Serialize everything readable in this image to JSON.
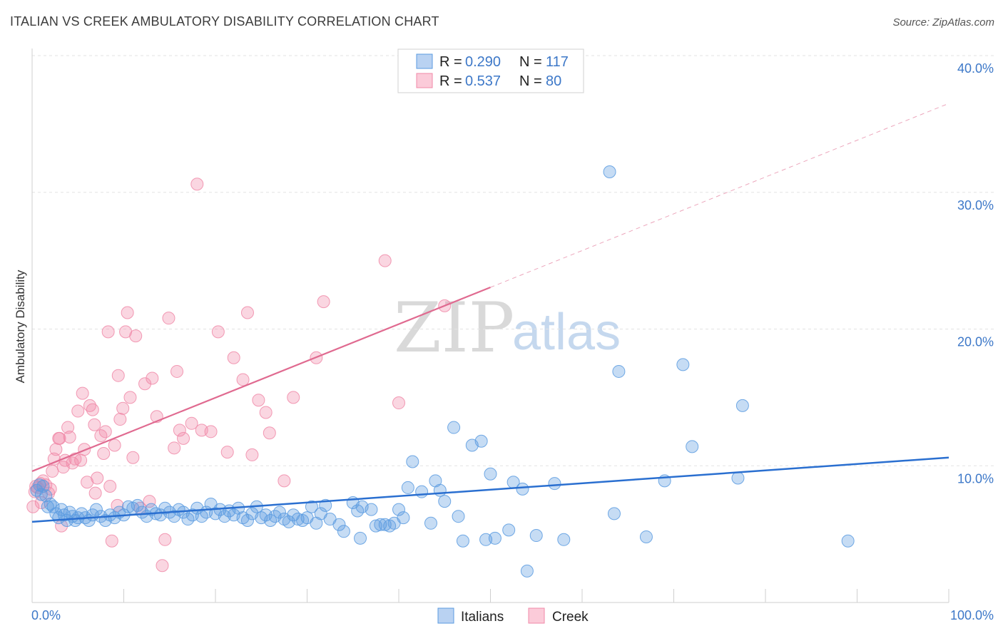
{
  "title": "ITALIAN VS CREEK AMBULATORY DISABILITY CORRELATION CHART",
  "source": "Source: ZipAtlas.com",
  "watermark": {
    "zip": "ZIP",
    "atlas": "atlas"
  },
  "colors": {
    "italians": "#5b9be0",
    "creek": "#f08aa8",
    "italians_line": "#2a6fd0",
    "creek_line": "#e06a90",
    "tick": "#3d78c8"
  },
  "legend": {
    "rows": [
      {
        "r_label": "R =",
        "r_value": "0.290",
        "n_label": "N =",
        "n_value": "117"
      },
      {
        "r_label": "R =",
        "r_value": "0.537",
        "n_label": "N =",
        "n_value": "80"
      }
    ]
  },
  "bottom_legend": [
    "Italians",
    "Creek"
  ],
  "chart_data": {
    "type": "scatter",
    "title": "ITALIAN VS CREEK AMBULATORY DISABILITY CORRELATION CHART",
    "xlabel": "",
    "ylabel": "Ambulatory Disability",
    "xlim": [
      0,
      100
    ],
    "ylim": [
      0,
      40
    ],
    "x_tick_labels": [
      "0.0%",
      "100.0%"
    ],
    "y_tick_labels": [
      "10.0%",
      "20.0%",
      "30.0%",
      "40.0%"
    ],
    "y_ticks": [
      10,
      20,
      30,
      40
    ],
    "grid": "horizontal dashed",
    "legend_position": "top-center",
    "series": [
      {
        "name": "Italians",
        "r": 0.29,
        "n": 117,
        "trend": {
          "x": [
            0,
            100
          ],
          "y": [
            5.9,
            10.6
          ]
        },
        "points": [
          [
            0.5,
            8.2
          ],
          [
            0.8,
            8.6
          ],
          [
            1.0,
            7.9
          ],
          [
            1.2,
            8.5
          ],
          [
            1.5,
            7.8
          ],
          [
            1.7,
            7.0
          ],
          [
            2.0,
            7.2
          ],
          [
            2.3,
            7.0
          ],
          [
            2.6,
            6.5
          ],
          [
            2.9,
            6.2
          ],
          [
            3.2,
            6.8
          ],
          [
            3.5,
            6.4
          ],
          [
            3.8,
            6.0
          ],
          [
            4.1,
            6.6
          ],
          [
            4.4,
            6.3
          ],
          [
            4.7,
            6.0
          ],
          [
            5.0,
            6.2
          ],
          [
            5.4,
            6.5
          ],
          [
            5.8,
            6.2
          ],
          [
            6.2,
            6.0
          ],
          [
            6.6,
            6.4
          ],
          [
            7.0,
            6.8
          ],
          [
            7.5,
            6.3
          ],
          [
            8.0,
            6.0
          ],
          [
            8.5,
            6.4
          ],
          [
            9.0,
            6.2
          ],
          [
            9.5,
            6.6
          ],
          [
            10.0,
            6.4
          ],
          [
            10.5,
            7.0
          ],
          [
            11.0,
            6.9
          ],
          [
            11.5,
            7.1
          ],
          [
            12.0,
            6.6
          ],
          [
            12.5,
            6.3
          ],
          [
            13.0,
            6.8
          ],
          [
            13.5,
            6.5
          ],
          [
            14.0,
            6.4
          ],
          [
            14.5,
            6.9
          ],
          [
            15.0,
            6.6
          ],
          [
            15.5,
            6.3
          ],
          [
            16.0,
            6.8
          ],
          [
            16.5,
            6.6
          ],
          [
            17.0,
            6.1
          ],
          [
            17.5,
            6.4
          ],
          [
            18.0,
            6.9
          ],
          [
            18.5,
            6.3
          ],
          [
            19.0,
            6.6
          ],
          [
            19.5,
            7.2
          ],
          [
            20.0,
            6.5
          ],
          [
            20.5,
            6.8
          ],
          [
            21.0,
            6.3
          ],
          [
            21.5,
            6.7
          ],
          [
            22.0,
            6.4
          ],
          [
            22.5,
            6.9
          ],
          [
            23.0,
            6.2
          ],
          [
            23.5,
            6.0
          ],
          [
            24.0,
            6.5
          ],
          [
            24.5,
            7.0
          ],
          [
            25.0,
            6.2
          ],
          [
            25.5,
            6.4
          ],
          [
            26.0,
            6.0
          ],
          [
            26.5,
            6.3
          ],
          [
            27.0,
            6.6
          ],
          [
            27.5,
            6.1
          ],
          [
            28.0,
            5.9
          ],
          [
            28.5,
            6.4
          ],
          [
            29.0,
            6.1
          ],
          [
            29.5,
            6.0
          ],
          [
            30.0,
            6.2
          ],
          [
            30.5,
            7.0
          ],
          [
            31.0,
            5.8
          ],
          [
            31.5,
            6.5
          ],
          [
            32.0,
            7.1
          ],
          [
            32.5,
            6.1
          ],
          [
            33.5,
            5.7
          ],
          [
            34.0,
            5.2
          ],
          [
            35.0,
            7.3
          ],
          [
            35.5,
            6.7
          ],
          [
            36.0,
            7.0
          ],
          [
            37.0,
            6.8
          ],
          [
            37.5,
            5.6
          ],
          [
            38.0,
            5.7
          ],
          [
            38.5,
            5.7
          ],
          [
            39.0,
            5.6
          ],
          [
            39.5,
            5.8
          ],
          [
            40.0,
            6.8
          ],
          [
            40.5,
            6.2
          ],
          [
            41.0,
            8.4
          ],
          [
            41.5,
            10.3
          ],
          [
            42.5,
            8.1
          ],
          [
            43.5,
            5.8
          ],
          [
            44.0,
            8.9
          ],
          [
            44.5,
            8.2
          ],
          [
            45.0,
            7.4
          ],
          [
            46.0,
            12.8
          ],
          [
            46.5,
            6.3
          ],
          [
            47.0,
            4.5
          ],
          [
            48.0,
            11.5
          ],
          [
            49.0,
            11.8
          ],
          [
            49.5,
            4.6
          ],
          [
            50.0,
            9.4
          ],
          [
            50.5,
            4.7
          ],
          [
            52.0,
            5.3
          ],
          [
            52.5,
            8.8
          ],
          [
            53.5,
            8.3
          ],
          [
            54.0,
            2.3
          ],
          [
            55.0,
            4.9
          ],
          [
            57.0,
            8.7
          ],
          [
            58.0,
            4.6
          ],
          [
            63.0,
            31.5
          ],
          [
            63.5,
            6.5
          ],
          [
            64.0,
            16.9
          ],
          [
            67.0,
            4.8
          ],
          [
            69.0,
            8.9
          ],
          [
            71.0,
            17.4
          ],
          [
            72.0,
            11.4
          ],
          [
            77.0,
            9.1
          ],
          [
            77.5,
            14.4
          ],
          [
            89.0,
            4.5
          ],
          [
            35.8,
            4.7
          ]
        ]
      },
      {
        "name": "Creek",
        "r": 0.537,
        "n": 80,
        "trend": {
          "x": [
            0,
            100
          ],
          "y": [
            9.6,
            36.5
          ]
        },
        "trend_solid_until": 50,
        "points": [
          [
            0.1,
            7.0
          ],
          [
            0.4,
            8.5
          ],
          [
            0.6,
            8.4
          ],
          [
            0.9,
            8.7
          ],
          [
            1.2,
            8.9
          ],
          [
            1.5,
            8.6
          ],
          [
            1.8,
            8.0
          ],
          [
            2.0,
            8.3
          ],
          [
            2.4,
            10.5
          ],
          [
            2.6,
            11.2
          ],
          [
            2.9,
            12.0
          ],
          [
            3.2,
            5.6
          ],
          [
            3.4,
            9.9
          ],
          [
            3.6,
            10.4
          ],
          [
            3.9,
            12.8
          ],
          [
            4.1,
            12.1
          ],
          [
            4.4,
            10.2
          ],
          [
            4.7,
            10.5
          ],
          [
            5.0,
            14.0
          ],
          [
            5.3,
            10.4
          ],
          [
            5.5,
            15.3
          ],
          [
            5.7,
            11.2
          ],
          [
            6.0,
            8.8
          ],
          [
            6.3,
            14.4
          ],
          [
            6.6,
            14.1
          ],
          [
            6.9,
            8.0
          ],
          [
            7.1,
            9.1
          ],
          [
            7.5,
            12.2
          ],
          [
            7.8,
            10.9
          ],
          [
            8.0,
            12.5
          ],
          [
            8.3,
            19.8
          ],
          [
            8.5,
            8.5
          ],
          [
            8.7,
            4.5
          ],
          [
            9.0,
            11.5
          ],
          [
            9.3,
            7.1
          ],
          [
            9.6,
            13.4
          ],
          [
            9.9,
            14.2
          ],
          [
            10.2,
            19.8
          ],
          [
            10.4,
            21.2
          ],
          [
            10.7,
            15.0
          ],
          [
            11.0,
            10.6
          ],
          [
            11.3,
            19.5
          ],
          [
            11.8,
            6.9
          ],
          [
            12.3,
            16.0
          ],
          [
            12.8,
            7.4
          ],
          [
            13.1,
            16.4
          ],
          [
            13.6,
            13.6
          ],
          [
            14.2,
            2.7
          ],
          [
            14.5,
            4.6
          ],
          [
            14.9,
            20.8
          ],
          [
            15.5,
            11.3
          ],
          [
            15.8,
            16.9
          ],
          [
            16.1,
            12.6
          ],
          [
            16.5,
            12.0
          ],
          [
            17.4,
            13.1
          ],
          [
            18.0,
            30.6
          ],
          [
            18.5,
            12.6
          ],
          [
            19.5,
            12.5
          ],
          [
            20.3,
            19.8
          ],
          [
            21.3,
            11.0
          ],
          [
            22.0,
            17.9
          ],
          [
            23.0,
            16.3
          ],
          [
            23.5,
            21.2
          ],
          [
            24.0,
            10.8
          ],
          [
            24.7,
            14.8
          ],
          [
            25.5,
            13.9
          ],
          [
            25.9,
            12.4
          ],
          [
            27.5,
            8.9
          ],
          [
            28.5,
            15.0
          ],
          [
            31.0,
            17.9
          ],
          [
            31.8,
            22.0
          ],
          [
            38.5,
            25.0
          ],
          [
            40.0,
            14.6
          ],
          [
            45.0,
            21.7
          ],
          [
            0.3,
            8.1
          ],
          [
            1.0,
            7.3
          ],
          [
            2.2,
            9.6
          ],
          [
            3.0,
            12.0
          ],
          [
            6.8,
            13.0
          ],
          [
            9.4,
            16.6
          ]
        ]
      }
    ]
  }
}
